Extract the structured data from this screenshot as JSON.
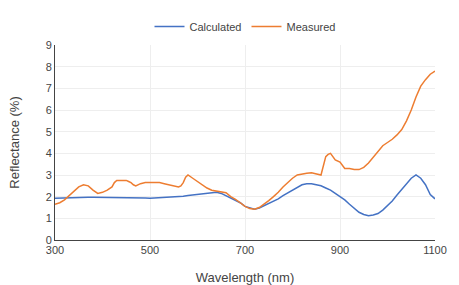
{
  "chart_data": {
    "type": "line",
    "xlabel": "Wavelength (nm)",
    "ylabel": "Reflectance (%)",
    "xlim": [
      300,
      1100
    ],
    "ylim": [
      0,
      9
    ],
    "xticks": [
      300,
      500,
      700,
      900,
      1100
    ],
    "yticks": [
      0,
      1,
      2,
      3,
      4,
      5,
      6,
      7,
      8,
      9
    ],
    "grid": true,
    "legend": "top",
    "series": [
      {
        "name": "Calculated",
        "color": "#4472C4",
        "x": [
          300,
          310,
          320,
          330,
          340,
          350,
          360,
          370,
          380,
          390,
          400,
          410,
          420,
          430,
          440,
          450,
          460,
          470,
          480,
          490,
          500,
          510,
          520,
          530,
          540,
          550,
          560,
          570,
          580,
          590,
          600,
          610,
          620,
          630,
          640,
          650,
          660,
          670,
          680,
          690,
          700,
          710,
          720,
          730,
          740,
          750,
          760,
          770,
          780,
          790,
          800,
          810,
          820,
          830,
          840,
          850,
          860,
          870,
          880,
          890,
          900,
          910,
          920,
          930,
          940,
          950,
          960,
          970,
          980,
          990,
          1000,
          1010,
          1020,
          1030,
          1040,
          1050,
          1060,
          1070,
          1080,
          1090,
          1100
        ],
        "values": [
          1.93,
          1.94,
          1.95,
          1.95,
          1.96,
          1.96,
          1.97,
          1.97,
          1.97,
          1.97,
          1.97,
          1.97,
          1.97,
          1.97,
          1.97,
          1.97,
          1.97,
          1.96,
          1.95,
          1.94,
          1.93,
          1.94,
          1.95,
          1.96,
          1.97,
          1.98,
          2.0,
          2.02,
          2.05,
          2.08,
          2.1,
          2.13,
          2.17,
          2.2,
          2.2,
          2.15,
          2.05,
          1.95,
          1.85,
          1.72,
          1.55,
          1.47,
          1.42,
          1.48,
          1.58,
          1.68,
          1.78,
          1.9,
          2.05,
          2.18,
          2.3,
          2.43,
          2.55,
          2.6,
          2.6,
          2.55,
          2.5,
          2.4,
          2.3,
          2.15,
          2.0,
          1.85,
          1.65,
          1.45,
          1.28,
          1.18,
          1.12,
          1.15,
          1.22,
          1.38,
          1.58,
          1.8,
          2.08,
          2.35,
          2.6,
          2.85,
          3.0,
          2.85,
          2.55,
          2.1,
          1.9
        ]
      },
      {
        "name": "Measured",
        "color": "#ED7D31",
        "x": [
          300,
          310,
          320,
          330,
          340,
          350,
          360,
          370,
          380,
          390,
          400,
          410,
          420,
          425,
          430,
          435,
          440,
          445,
          450,
          455,
          460,
          465,
          470,
          480,
          490,
          500,
          510,
          515,
          520,
          530,
          540,
          550,
          560,
          565,
          570,
          575,
          580,
          590,
          600,
          610,
          620,
          630,
          640,
          650,
          660,
          670,
          680,
          690,
          700,
          710,
          720,
          730,
          740,
          750,
          760,
          770,
          780,
          790,
          800,
          810,
          820,
          830,
          840,
          850,
          860,
          870,
          875,
          880,
          890,
          900,
          905,
          910,
          920,
          930,
          940,
          950,
          960,
          970,
          980,
          990,
          1000,
          1010,
          1020,
          1030,
          1040,
          1050,
          1060,
          1070,
          1080,
          1090,
          1100
        ],
        "values": [
          1.65,
          1.72,
          1.85,
          2.05,
          2.25,
          2.45,
          2.55,
          2.5,
          2.3,
          2.15,
          2.2,
          2.3,
          2.45,
          2.65,
          2.75,
          2.75,
          2.75,
          2.75,
          2.75,
          2.7,
          2.65,
          2.55,
          2.5,
          2.6,
          2.65,
          2.65,
          2.65,
          2.65,
          2.65,
          2.6,
          2.55,
          2.5,
          2.45,
          2.5,
          2.65,
          2.9,
          3.0,
          2.85,
          2.7,
          2.55,
          2.4,
          2.3,
          2.25,
          2.2,
          2.18,
          2.0,
          1.88,
          1.72,
          1.55,
          1.45,
          1.42,
          1.5,
          1.65,
          1.82,
          2.0,
          2.2,
          2.45,
          2.65,
          2.85,
          3.0,
          3.05,
          3.08,
          3.1,
          3.05,
          3.0,
          3.85,
          3.95,
          4.0,
          3.7,
          3.6,
          3.45,
          3.3,
          3.3,
          3.25,
          3.25,
          3.35,
          3.55,
          3.8,
          4.1,
          4.35,
          4.5,
          4.65,
          4.85,
          5.1,
          5.5,
          6.0,
          6.6,
          7.1,
          7.4,
          7.65,
          7.8
        ]
      }
    ]
  }
}
